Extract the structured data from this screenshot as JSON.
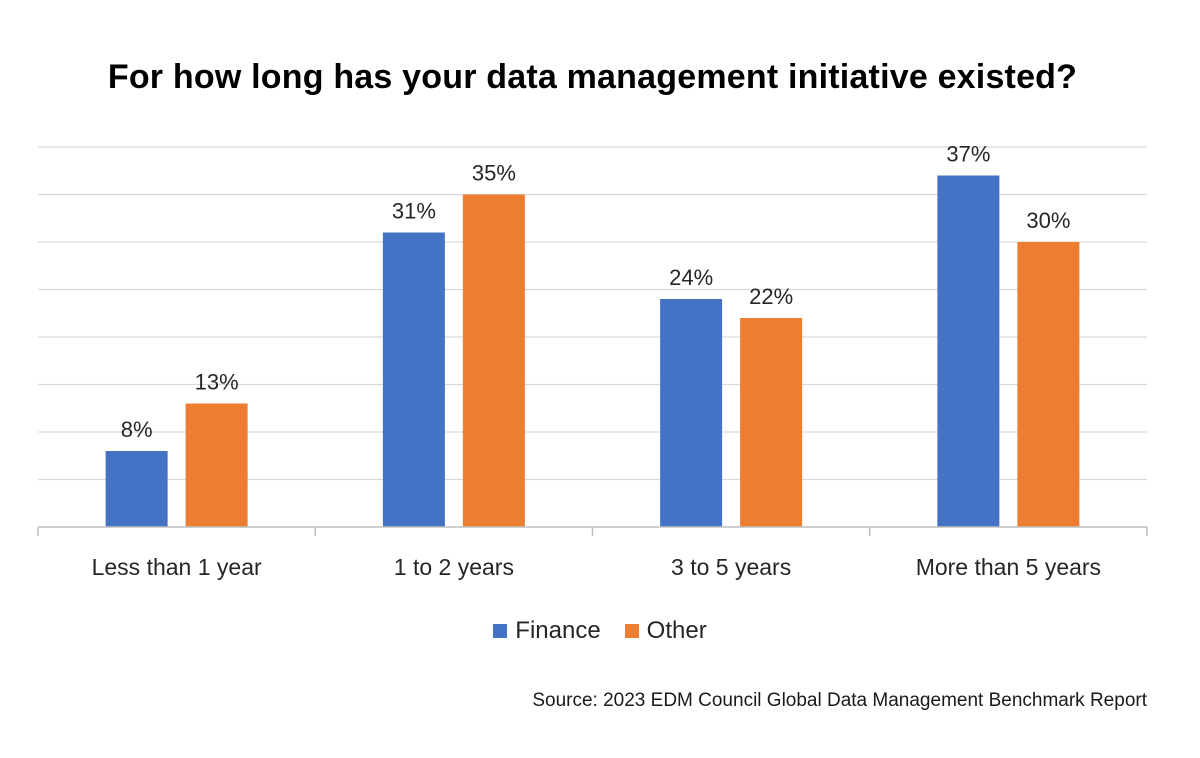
{
  "chart_data": {
    "type": "bar",
    "title": "For how long has your data management initiative existed?",
    "categories": [
      "Less than 1 year",
      "1 to 2 years",
      "3 to 5 years",
      "More than 5 years"
    ],
    "series": [
      {
        "name": "Finance",
        "color": "#4472c4",
        "values": [
          8,
          31,
          24,
          37
        ],
        "labels": [
          "8%",
          "31%",
          "24%",
          "37%"
        ]
      },
      {
        "name": "Other",
        "color": "#ed7d31",
        "values": [
          13,
          35,
          22,
          30
        ],
        "labels": [
          "13%",
          "35%",
          "22%",
          "30%"
        ]
      }
    ],
    "ylim": [
      0,
      40
    ],
    "grid": true,
    "legend_position": "bottom",
    "xlabel": "",
    "ylabel": ""
  },
  "source": "Source: 2023 EDM Council Global Data Management Benchmark Report"
}
